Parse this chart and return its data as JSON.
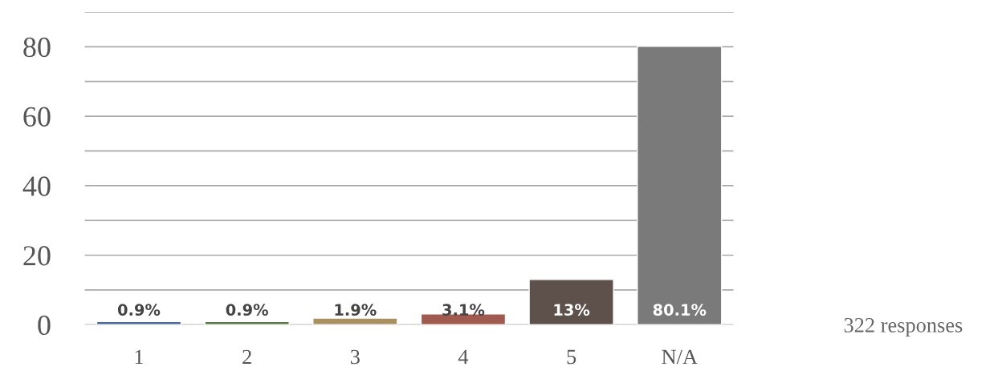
{
  "chart_data": {
    "type": "bar",
    "categories": [
      "1",
      "2",
      "3",
      "4",
      "5",
      "N/A"
    ],
    "values": [
      0.9,
      0.9,
      1.9,
      3.1,
      13,
      80.1
    ],
    "colors": [
      "#4a6a9a",
      "#5a7a4a",
      "#a89060",
      "#a05a50",
      "#5e504a",
      "#7a7a7a"
    ],
    "value_labels": [
      "0.9%",
      "0.9%",
      "1.9%",
      "3.1%",
      "13%",
      "80.1%"
    ],
    "ylim": [
      0,
      90
    ],
    "yticks": [
      0,
      {
        "value": 10,
        "label": null
      },
      20,
      {
        "value": 30,
        "label": null
      },
      40,
      {
        "value": 50,
        "label": null
      },
      60,
      {
        "value": 70,
        "label": null
      },
      80,
      {
        "value": 90,
        "label": null
      }
    ],
    "grid": "y",
    "annotations": [
      "322 responses"
    ]
  }
}
